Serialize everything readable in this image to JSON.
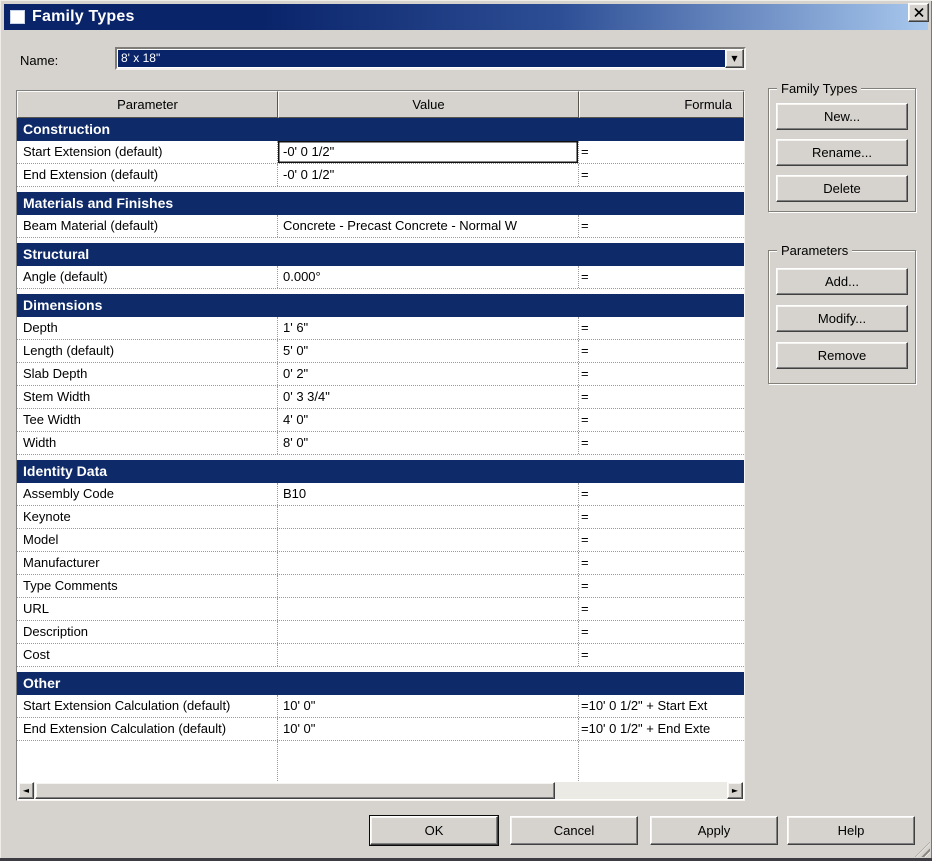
{
  "window": {
    "title": "Family Types"
  },
  "name_field": {
    "label": "Name:",
    "value": "8' x 18\""
  },
  "table": {
    "columns": [
      "Parameter",
      "Value",
      "Formula"
    ],
    "sections": [
      {
        "title": "Construction",
        "rows": [
          {
            "param": "Start Extension (default)",
            "value": "-0'  0 1/2\"",
            "formula": "=",
            "focused": true
          },
          {
            "param": "End Extension (default)",
            "value": "-0'  0 1/2\"",
            "formula": "="
          }
        ]
      },
      {
        "title": "Materials and Finishes",
        "rows": [
          {
            "param": "Beam Material (default)",
            "value": "Concrete - Precast Concrete - Normal W",
            "formula": "="
          }
        ]
      },
      {
        "title": "Structural",
        "rows": [
          {
            "param": "Angle (default)",
            "value": "0.000°",
            "formula": "="
          }
        ]
      },
      {
        "title": "Dimensions",
        "rows": [
          {
            "param": "Depth",
            "value": "1'  6\"",
            "formula": "="
          },
          {
            "param": "Length (default)",
            "value": "5'  0\"",
            "formula": "="
          },
          {
            "param": "Slab Depth",
            "value": "0'  2\"",
            "formula": "="
          },
          {
            "param": "Stem Width",
            "value": "0'  3 3/4\"",
            "formula": "="
          },
          {
            "param": "Tee Width",
            "value": "4'  0\"",
            "formula": "="
          },
          {
            "param": "Width",
            "value": "8'  0\"",
            "formula": "="
          }
        ]
      },
      {
        "title": "Identity Data",
        "rows": [
          {
            "param": "Assembly Code",
            "value": "B10",
            "formula": "="
          },
          {
            "param": "Keynote",
            "value": "",
            "formula": "="
          },
          {
            "param": "Model",
            "value": "",
            "formula": "="
          },
          {
            "param": "Manufacturer",
            "value": "",
            "formula": "="
          },
          {
            "param": "Type Comments",
            "value": "",
            "formula": "="
          },
          {
            "param": "URL",
            "value": "",
            "formula": "="
          },
          {
            "param": "Description",
            "value": "",
            "formula": "="
          },
          {
            "param": "Cost",
            "value": "",
            "formula": "="
          }
        ]
      },
      {
        "title": "Other",
        "rows": [
          {
            "param": "Start Extension Calculation (default)",
            "value": "10'  0\"",
            "formula": "=10'  0 1/2\" + Start Ext"
          },
          {
            "param": "End Extension Calculation (default)",
            "value": "10'  0\"",
            "formula": "=10'  0 1/2\" + End Exte"
          }
        ]
      }
    ]
  },
  "family_types_group": {
    "title": "Family Types",
    "buttons": [
      "New...",
      "Rename...",
      "Delete"
    ]
  },
  "parameters_group": {
    "title": "Parameters",
    "buttons": [
      "Add...",
      "Modify...",
      "Remove"
    ]
  },
  "footer": {
    "buttons": [
      "OK",
      "Cancel",
      "Apply",
      "Help"
    ]
  },
  "icons": {
    "close": "close-x",
    "dropdown": "▼",
    "scroll_left": "◄",
    "scroll_right": "►"
  },
  "colors": {
    "accent": "#0a246a",
    "section_header": "#0e2a68",
    "title_gradient_end": "#a8c8ee",
    "dialog_bg": "#d6d3ce"
  }
}
